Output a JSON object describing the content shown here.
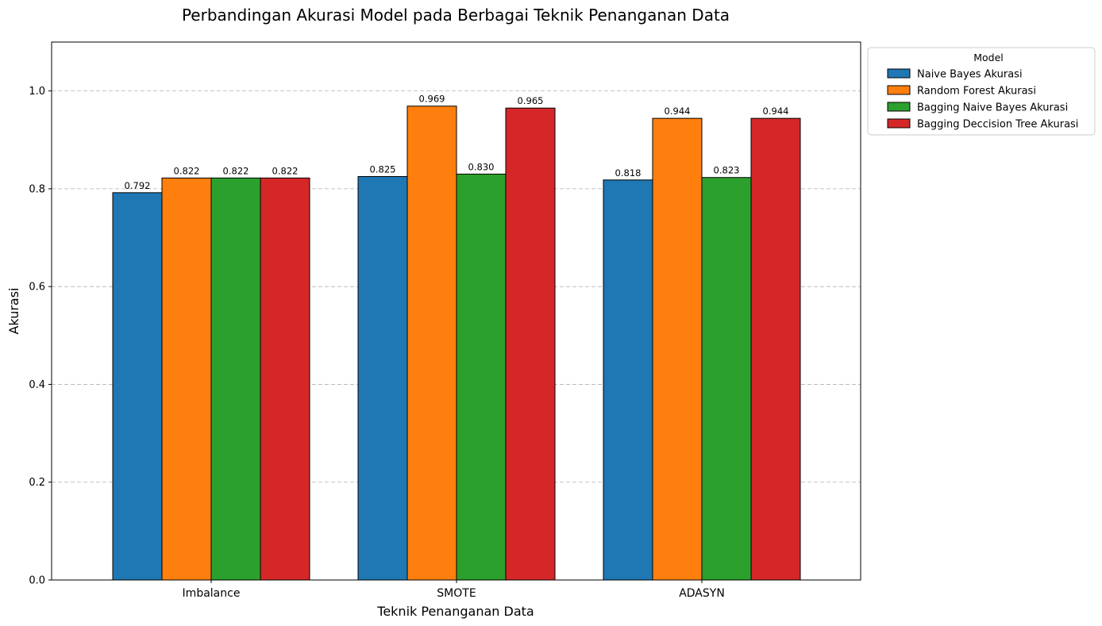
{
  "chart_data": {
    "type": "bar",
    "title": "Perbandingan Akurasi Model pada Berbagai Teknik Penanganan Data",
    "xlabel": "Teknik Penanganan Data",
    "ylabel": "Akurasi",
    "categories": [
      "Imbalance",
      "SMOTE",
      "ADASYN"
    ],
    "ylim": [
      0,
      1.1
    ],
    "yticks": [
      0.0,
      0.2,
      0.4,
      0.6,
      0.8,
      1.0
    ],
    "ytick_labels": [
      "0.0",
      "0.2",
      "0.4",
      "0.6",
      "0.8",
      "1.0"
    ],
    "grid": "y, dashed",
    "legend": {
      "title": "Model",
      "placement": "outside top-right"
    },
    "series": [
      {
        "name": "Naive Bayes Akurasi",
        "color": "#1f77b4",
        "values": [
          0.792,
          0.825,
          0.818
        ],
        "labels": [
          "0.792",
          "0.825",
          "0.818"
        ]
      },
      {
        "name": "Random Forest Akurasi",
        "color": "#ff7f0e",
        "values": [
          0.822,
          0.969,
          0.944
        ],
        "labels": [
          "0.822",
          "0.969",
          "0.944"
        ]
      },
      {
        "name": "Bagging Naive Bayes Akurasi",
        "color": "#2ca02c",
        "values": [
          0.822,
          0.83,
          0.823
        ],
        "labels": [
          "0.822",
          "0.830",
          "0.823"
        ]
      },
      {
        "name": "Bagging Deccision Tree Akurasi",
        "color": "#d62728",
        "values": [
          0.822,
          0.965,
          0.944
        ],
        "labels": [
          "0.822",
          "0.965",
          "0.944"
        ]
      }
    ]
  }
}
